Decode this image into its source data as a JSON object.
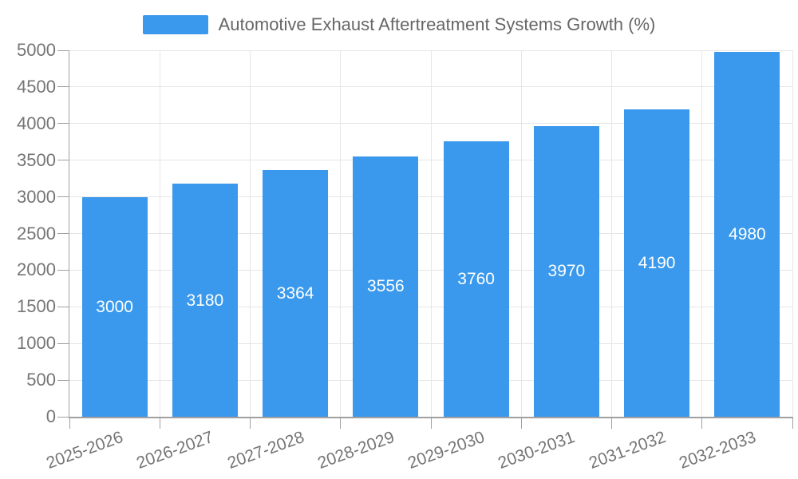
{
  "legend": {
    "series_label": "Automotive Exhaust Aftertreatment Systems Growth (%)"
  },
  "chart_data": {
    "type": "bar",
    "title": "Automotive Exhaust Aftertreatment Systems Growth (%)",
    "categories": [
      "2025-2026",
      "2026-2027",
      "2027-2028",
      "2028-2029",
      "2029-2030",
      "2030-2031",
      "2031-2032",
      "2032-2033"
    ],
    "series": [
      {
        "name": "Automotive Exhaust Aftertreatment Systems Growth (%)",
        "values": [
          3000,
          3180,
          3364,
          3556,
          3760,
          3970,
          4190,
          4980
        ]
      }
    ],
    "values": [
      3000,
      3180,
      3364,
      3556,
      3760,
      3970,
      4190,
      4980
    ],
    "bar_labels": [
      "3000",
      "3180",
      "3364",
      "3556",
      "3760",
      "3970",
      "4190",
      "4980"
    ],
    "xlabel": "",
    "ylabel": "",
    "ylim": [
      0,
      5000
    ],
    "y_tick_step": 500,
    "y_tick_labels": [
      "0",
      "500",
      "1000",
      "1500",
      "2000",
      "2500",
      "3000",
      "3500",
      "4000",
      "4500",
      "5000"
    ],
    "grid": true,
    "legend_position": "top-center",
    "bar_label_position": "inside-center",
    "x_label_rotation_deg": -20
  },
  "colors": {
    "bar_fill": "#3a99ec",
    "bar_label_text": "#ffffff",
    "gridline": "#e6e6e6",
    "axis_line": "#a0a0a0",
    "axis_text": "#757575",
    "title_text": "#666666",
    "background": "#ffffff"
  }
}
